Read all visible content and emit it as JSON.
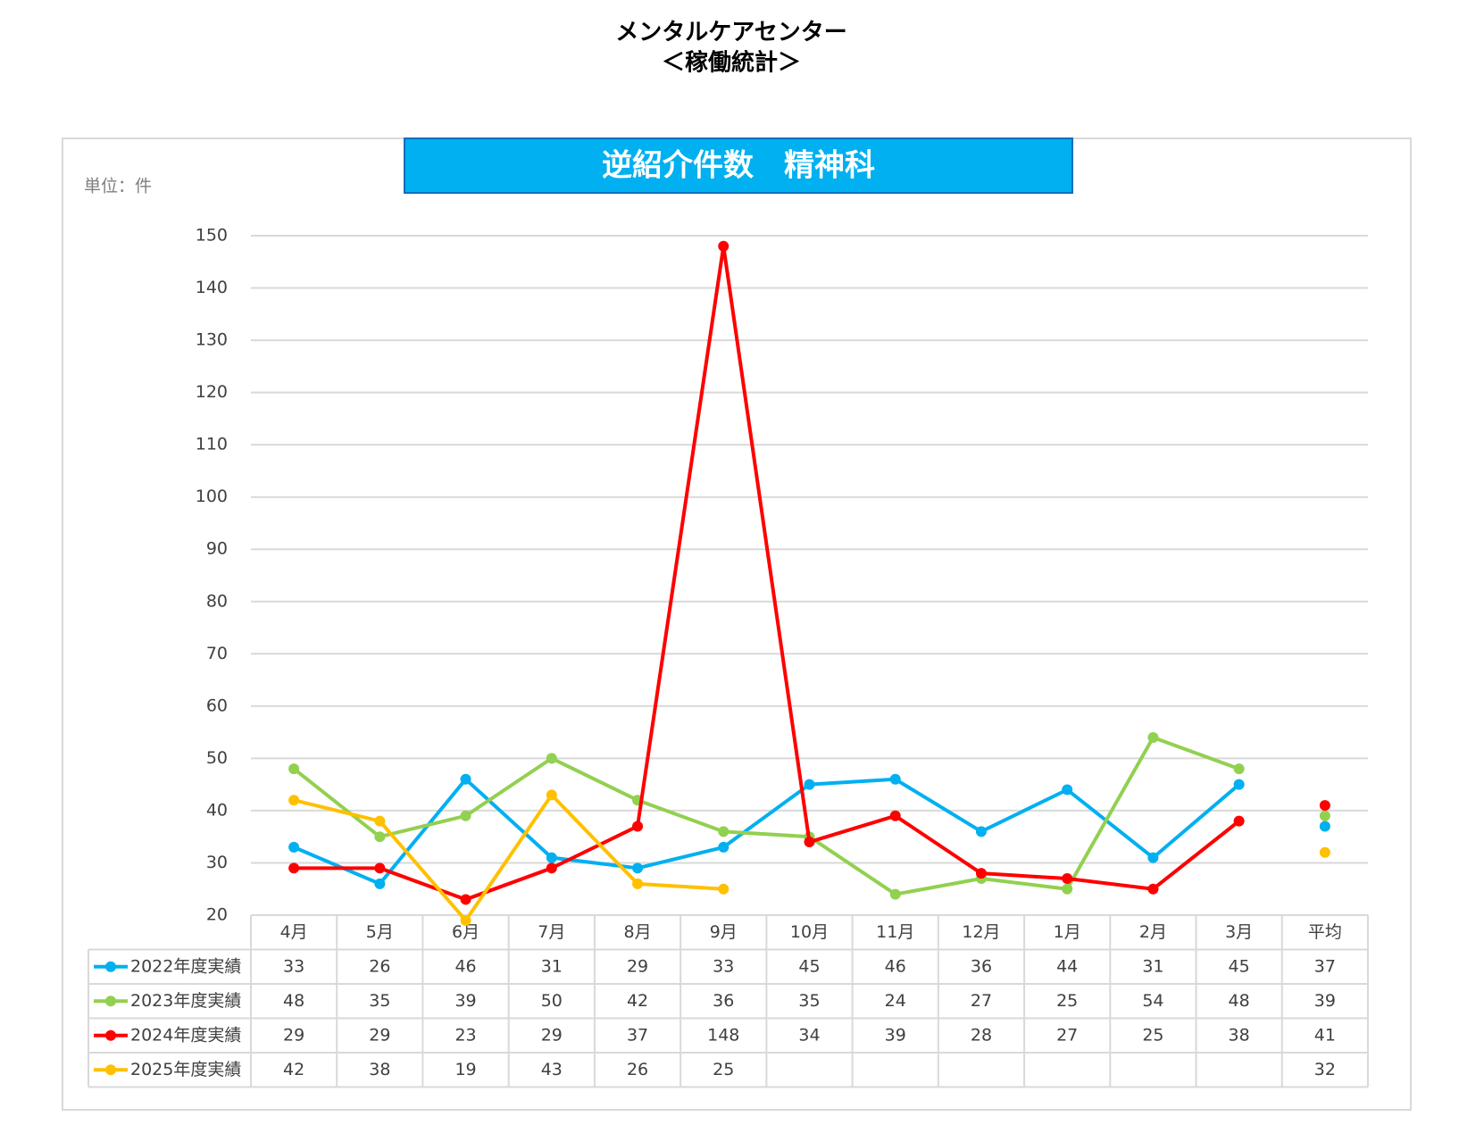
{
  "header": {
    "title": "メンタルケアセンター",
    "subtitle": "＜稼働統計＞"
  },
  "chart_data": {
    "type": "line",
    "title": "逆紹介件数　精神科",
    "unit_label": "単位：件",
    "categories": [
      "4月",
      "5月",
      "6月",
      "7月",
      "8月",
      "9月",
      "10月",
      "11月",
      "12月",
      "1月",
      "2月",
      "3月"
    ],
    "average_label": "平均",
    "series": [
      {
        "name": "2022年度実績",
        "color": "#00b0f0",
        "values": [
          33,
          26,
          46,
          31,
          29,
          33,
          45,
          46,
          36,
          44,
          31,
          45
        ],
        "average": 37
      },
      {
        "name": "2023年度実績",
        "color": "#92d050",
        "values": [
          48,
          35,
          39,
          50,
          42,
          36,
          35,
          24,
          27,
          25,
          54,
          48
        ],
        "average": 39
      },
      {
        "name": "2024年度実績",
        "color": "#ff0000",
        "values": [
          29,
          29,
          23,
          29,
          37,
          148,
          34,
          39,
          28,
          27,
          25,
          38
        ],
        "average": 41
      },
      {
        "name": "2025年度実績",
        "color": "#ffc000",
        "values": [
          42,
          38,
          19,
          43,
          26,
          25,
          null,
          null,
          null,
          null,
          null,
          null
        ],
        "average": 32
      }
    ],
    "ylim": [
      20,
      150
    ],
    "yticks": [
      20,
      30,
      40,
      50,
      60,
      70,
      80,
      90,
      100,
      110,
      120,
      130,
      140,
      150
    ],
    "grid": true
  }
}
